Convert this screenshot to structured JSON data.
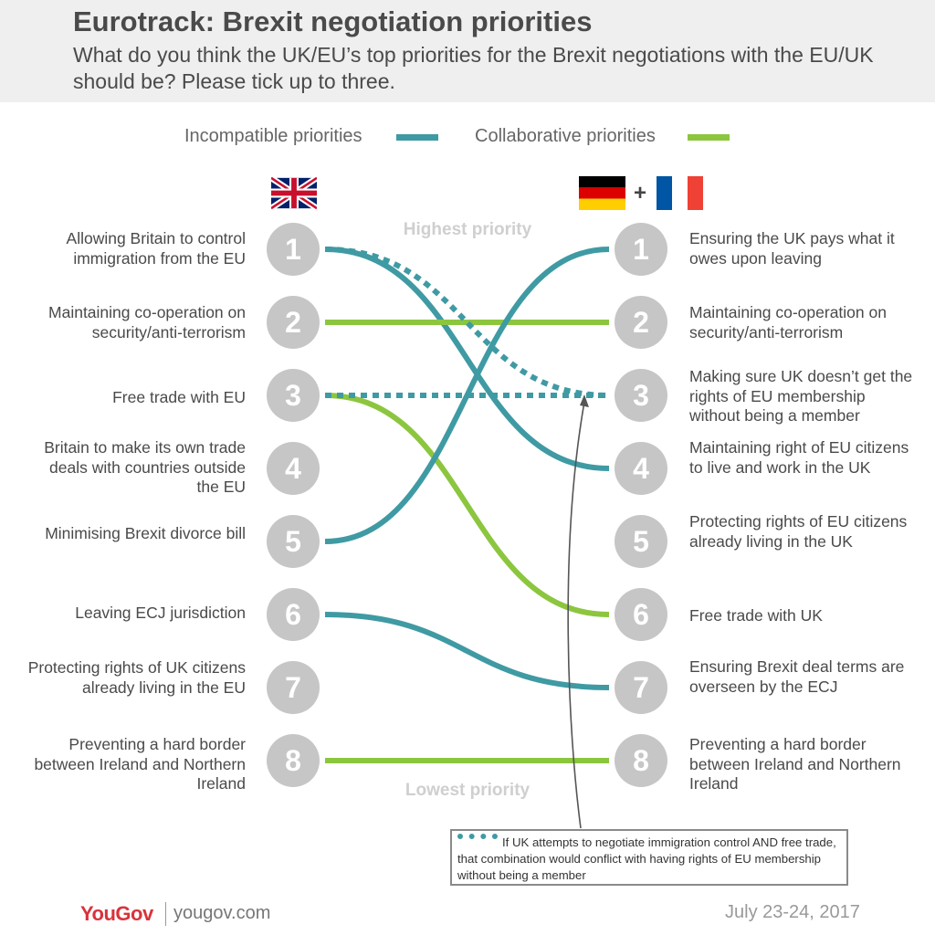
{
  "header": {
    "title": "Eurotrack: Brexit negotiation priorities",
    "subtitle": "What do you think the UK/EU’s top priorities for the Brexit negotiations with the EU/UK should be? Please tick up to three."
  },
  "legend": {
    "incompatible_label": "Incompatible priorities",
    "collaborative_label": "Collaborative priorities",
    "incompatible_color": "#3f9aa3",
    "collaborative_color": "#8cc63f"
  },
  "flags": {
    "left": "uk-flag-icon",
    "right": [
      "germany-flag-icon",
      "france-flag-icon"
    ],
    "plus": "+"
  },
  "priority_labels": {
    "highest": "Highest priority",
    "lowest": "Lowest priority"
  },
  "uk_priorities": [
    {
      "rank": "1",
      "text": "Allowing Britain to control immigration from the EU"
    },
    {
      "rank": "2",
      "text": "Maintaining co-operation on security/anti-terrorism"
    },
    {
      "rank": "3",
      "text": "Free trade with EU"
    },
    {
      "rank": "4",
      "text": "Britain to make its own trade deals with countries outside the EU"
    },
    {
      "rank": "5",
      "text": "Minimising Brexit divorce bill"
    },
    {
      "rank": "6",
      "text": "Leaving ECJ jurisdiction"
    },
    {
      "rank": "7",
      "text": "Protecting rights of UK citizens already living in the EU"
    },
    {
      "rank": "8",
      "text": "Preventing a hard border between Ireland and Northern Ireland"
    }
  ],
  "eu_priorities": [
    {
      "rank": "1",
      "text": "Ensuring the UK pays what it owes upon leaving"
    },
    {
      "rank": "2",
      "text": "Maintaining co-operation on security/anti-terrorism"
    },
    {
      "rank": "3",
      "text": "Making sure UK doesn’t get the rights of EU membership without being a member"
    },
    {
      "rank": "4",
      "text": "Maintaining right of EU citizens to live and work in the UK"
    },
    {
      "rank": "5",
      "text": "Protecting rights of EU citizens already living in the UK"
    },
    {
      "rank": "6",
      "text": "Free trade with UK"
    },
    {
      "rank": "7",
      "text": "Ensuring Brexit deal terms are overseen by the ECJ"
    },
    {
      "rank": "8",
      "text": "Preventing a hard border between Ireland and Northern Ireland"
    }
  ],
  "links": [
    {
      "from": 1,
      "to": 4,
      "kind": "incompatible",
      "style": "solid"
    },
    {
      "from": 2,
      "to": 2,
      "kind": "collaborative",
      "style": "solid"
    },
    {
      "from": 3,
      "to": 6,
      "kind": "collaborative",
      "style": "solid"
    },
    {
      "from": 5,
      "to": 1,
      "kind": "incompatible",
      "style": "solid"
    },
    {
      "from": 6,
      "to": 7,
      "kind": "incompatible",
      "style": "solid"
    },
    {
      "from": 8,
      "to": 8,
      "kind": "collaborative",
      "style": "solid"
    },
    {
      "from": 1,
      "to": 3,
      "kind": "incompatible",
      "style": "dotted"
    },
    {
      "from": 3,
      "to": 3,
      "kind": "incompatible",
      "style": "dotted"
    }
  ],
  "note": {
    "text": "If UK attempts to negotiate immigration control AND free trade, that combination would conflict with having rights of EU membership without being a member"
  },
  "footer": {
    "brand": "YouGov",
    "site": "yougov.com",
    "date": "July 23-24, 2017"
  }
}
